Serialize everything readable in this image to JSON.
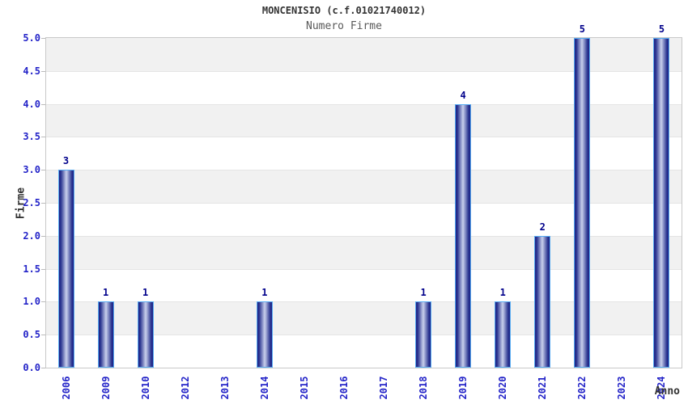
{
  "chart_data": {
    "type": "bar",
    "title": "MONCENISIO (c.f.01021740012)",
    "subtitle": "Numero Firme",
    "xlabel": "Anno",
    "ylabel": "Firme",
    "categories": [
      "2006",
      "2009",
      "2010",
      "2012",
      "2013",
      "2014",
      "2015",
      "2016",
      "2017",
      "2018",
      "2019",
      "2020",
      "2021",
      "2022",
      "2023",
      "2024"
    ],
    "values": [
      3,
      1,
      1,
      0,
      0,
      1,
      0,
      0,
      0,
      1,
      4,
      1,
      2,
      5,
      0,
      5
    ],
    "bar_value_labels": [
      "3",
      "1",
      "1",
      "",
      "",
      "1",
      "",
      "",
      "",
      "1",
      "4",
      "1",
      "2",
      "5",
      "",
      "5"
    ],
    "ylim": [
      0,
      5
    ],
    "ytick_step": 0.5,
    "ytick_labels": [
      "0.0",
      "0.5",
      "1.0",
      "1.5",
      "2.0",
      "2.5",
      "3.0",
      "3.5",
      "4.0",
      "4.5",
      "5.0"
    ],
    "grid": "alternating-horizontal-bands",
    "legend": "none",
    "colors": {
      "axis_tick_label": "#2424c8",
      "bar_value_label": "#00008b",
      "bar_edge": "#1d2185",
      "bar_mid": "#2a3490",
      "bar_center": "#c9d0ec",
      "bar_border": "#58acf2",
      "band_gray": "#f1f1f1",
      "band_white": "#ffffff",
      "gridline": "#e4e4e4",
      "plot_border": "#c8c8c8",
      "title_color": "#333333",
      "subtitle_color": "#595959"
    }
  }
}
